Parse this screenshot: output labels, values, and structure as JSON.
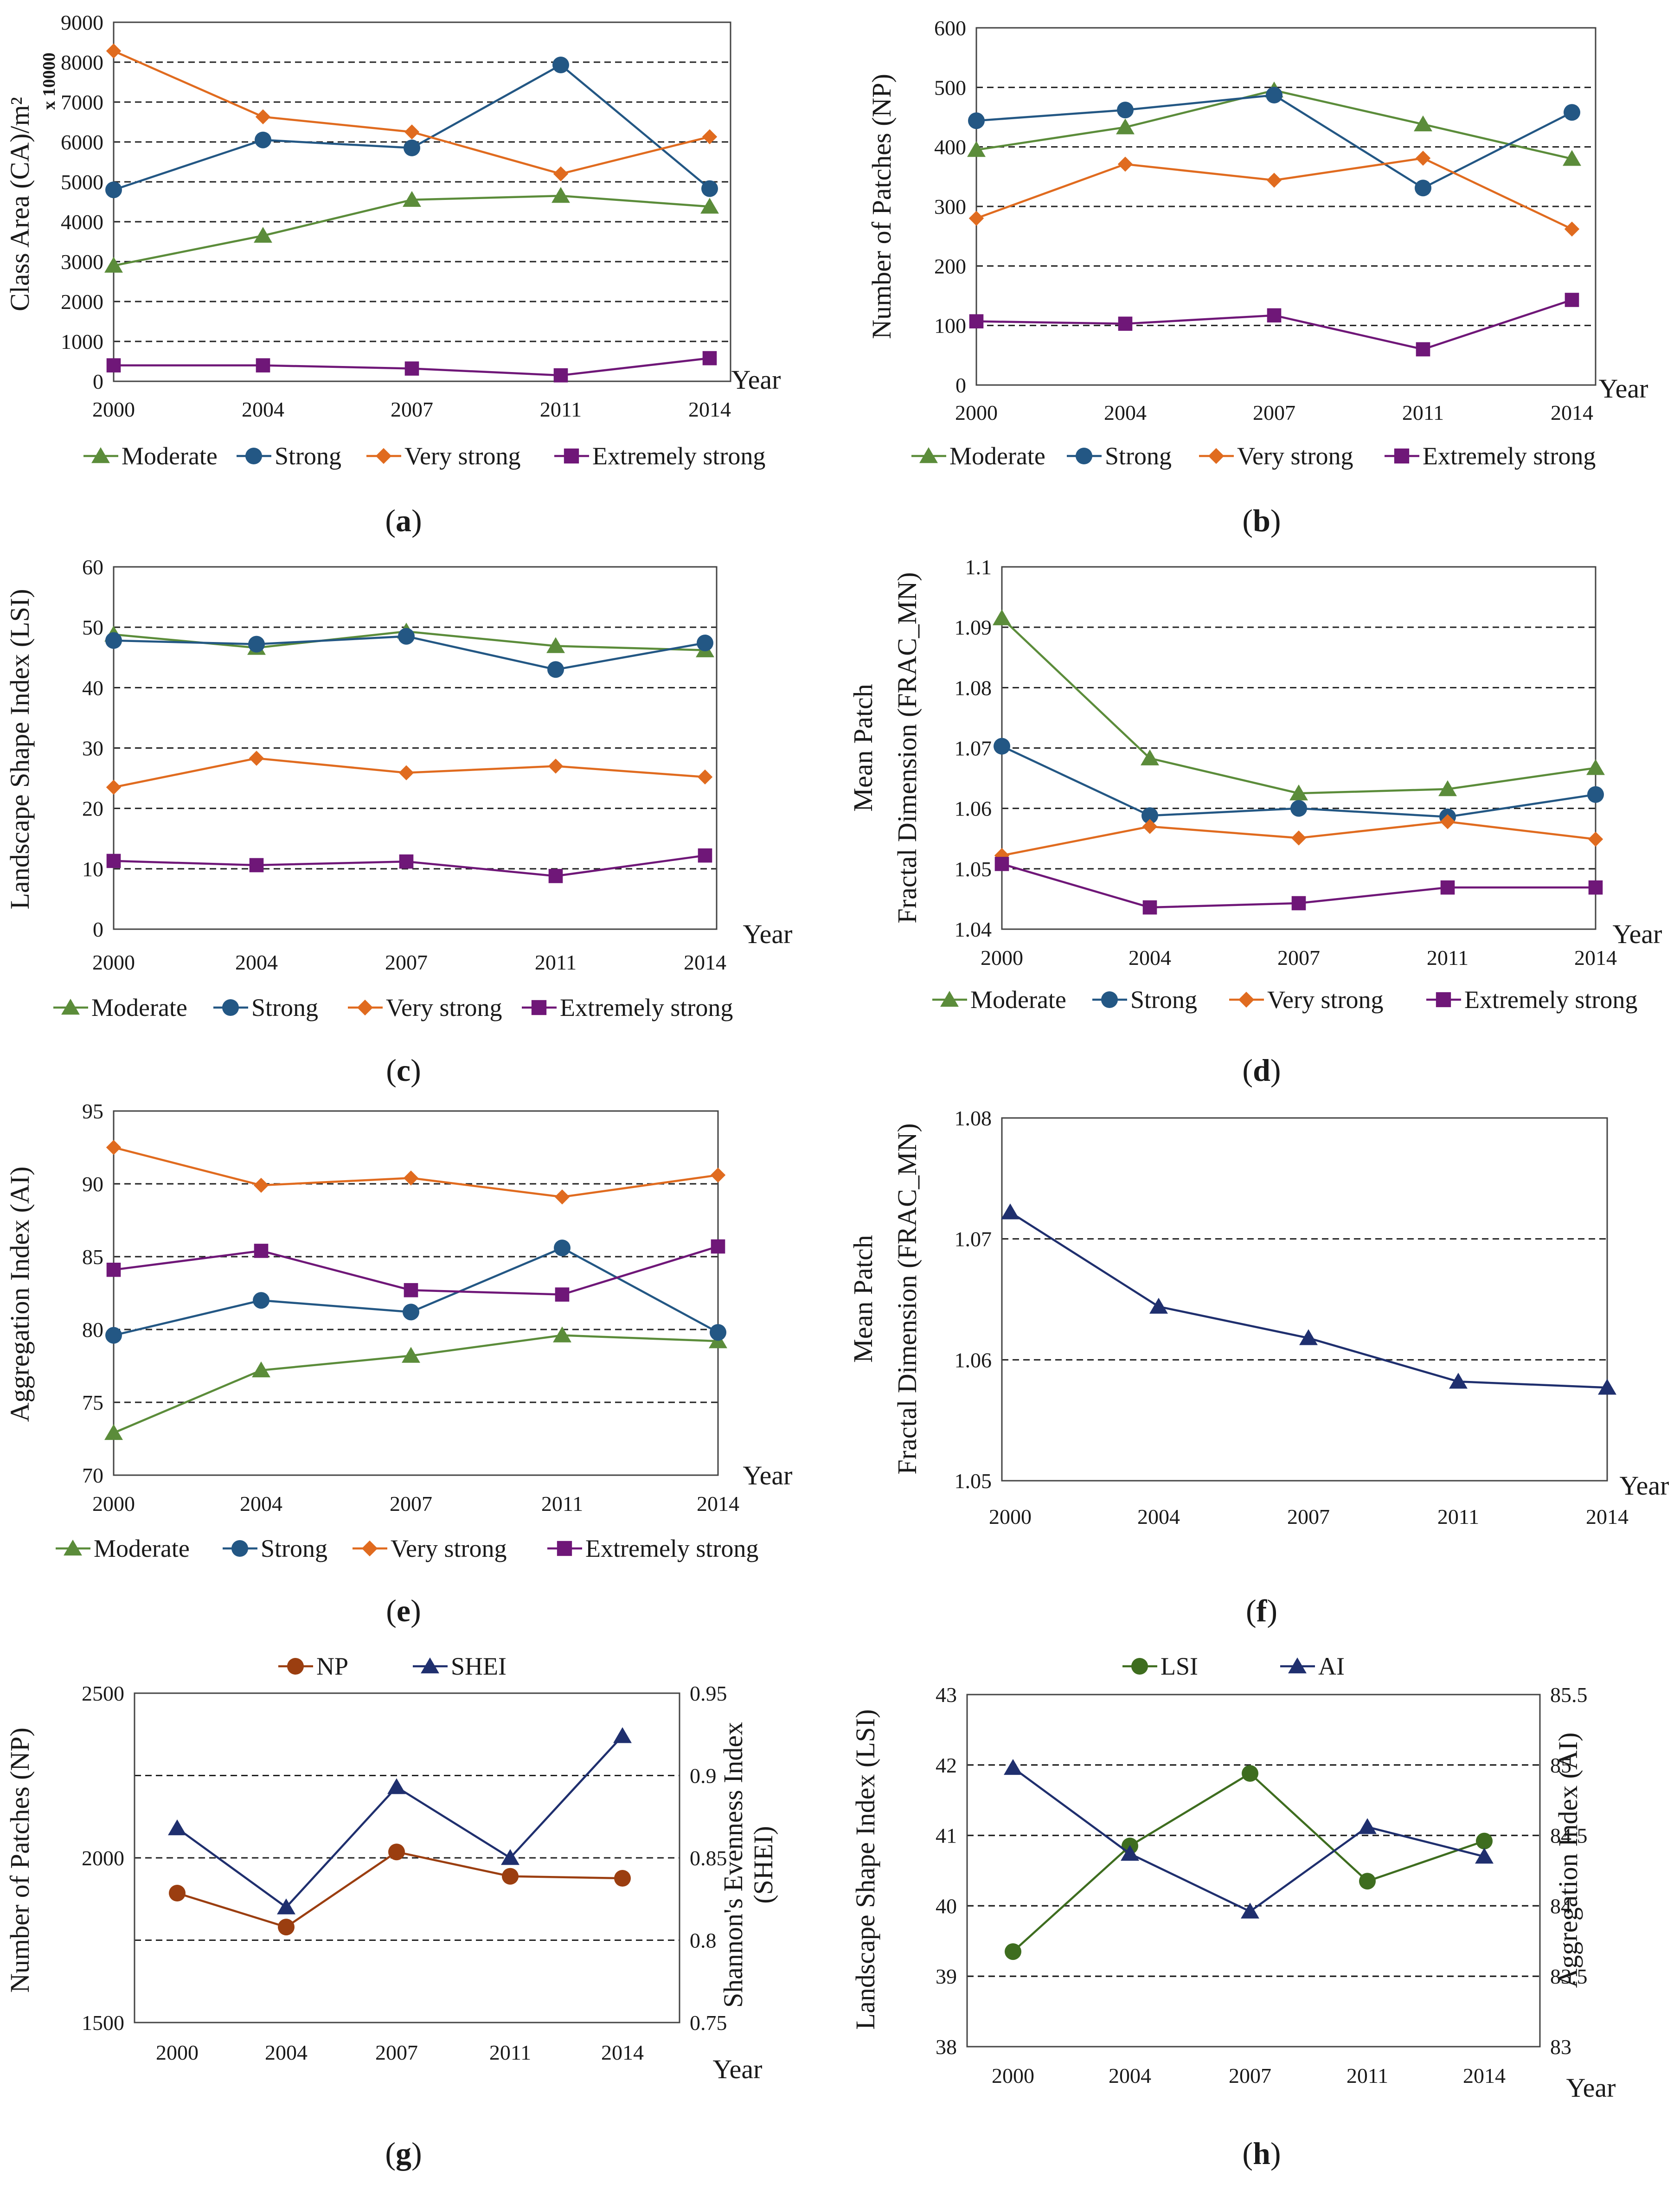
{
  "colors": {
    "moderate": "#5b8c3a",
    "strong": "#235784",
    "very_strong": "#e06b1f",
    "extremely_strong": "#6f1778",
    "np": "#9b3e10",
    "shei": "#1f2f6e",
    "lsi_h": "#3e6d1f",
    "ai_h": "#1f2f6e",
    "frac_f": "#1f2f6e"
  },
  "chart_data": [
    {
      "id": "a",
      "type": "line",
      "caption": "a",
      "title": "",
      "ylabel": "Class Area (CA)/m²",
      "multiplier": "x 10000",
      "xlabel": "Year",
      "categories": [
        "2000",
        "2004",
        "2007",
        "2011",
        "2014"
      ],
      "ylim": [
        0,
        9000
      ],
      "yticks": [
        "0",
        "1000",
        "2000",
        "3000",
        "4000",
        "5000",
        "6000",
        "7000",
        "8000",
        "9000"
      ],
      "grid": "dashed",
      "legend": "bottom",
      "series": [
        {
          "name": "Moderate",
          "marker": "triangle",
          "color_key": "moderate",
          "values": [
            2900,
            3650,
            4550,
            4650,
            4380
          ]
        },
        {
          "name": "Strong",
          "marker": "circle",
          "color_key": "strong",
          "values": [
            4800,
            6050,
            5850,
            7930,
            4830
          ]
        },
        {
          "name": "Very strong",
          "marker": "diamond",
          "color_key": "very_strong",
          "values": [
            8280,
            6630,
            6250,
            5200,
            6130
          ]
        },
        {
          "name": "Extremely strong",
          "marker": "square",
          "color_key": "extremely_strong",
          "values": [
            400,
            400,
            320,
            150,
            580
          ]
        }
      ]
    },
    {
      "id": "b",
      "type": "line",
      "caption": "b",
      "ylabel": "Number of Patches (NP)",
      "xlabel": "Year",
      "categories": [
        "2000",
        "2004",
        "2007",
        "2011",
        "2014"
      ],
      "ylim": [
        0,
        600
      ],
      "yticks": [
        "0",
        "100",
        "200",
        "300",
        "400",
        "500",
        "600"
      ],
      "grid": "dashed",
      "legend": "bottom",
      "series": [
        {
          "name": "Moderate",
          "marker": "triangle",
          "color_key": "moderate",
          "values": [
            395,
            433,
            495,
            438,
            380
          ]
        },
        {
          "name": "Strong",
          "marker": "circle",
          "color_key": "strong",
          "values": [
            444,
            462,
            487,
            331,
            458
          ]
        },
        {
          "name": "Very strong",
          "marker": "diamond",
          "color_key": "very_strong",
          "values": [
            280,
            371,
            344,
            381,
            262
          ]
        },
        {
          "name": "Extremely strong",
          "marker": "square",
          "color_key": "extremely_strong",
          "values": [
            107,
            103,
            117,
            60,
            143
          ]
        }
      ]
    },
    {
      "id": "c",
      "type": "line",
      "caption": "c",
      "ylabel": "Landscape Shape Index (LSI)",
      "xlabel": "Year",
      "categories": [
        "2000",
        "2004",
        "2007",
        "2011",
        "2014"
      ],
      "ylim": [
        0,
        60
      ],
      "yticks": [
        "0",
        "10",
        "20",
        "30",
        "40",
        "50",
        "60"
      ],
      "grid": "dashed",
      "legend": "bottom",
      "series": [
        {
          "name": "Moderate",
          "marker": "triangle",
          "color_key": "moderate",
          "values": [
            48.8,
            46.6,
            49.3,
            46.9,
            46.2
          ]
        },
        {
          "name": "Strong",
          "marker": "circle",
          "color_key": "strong",
          "values": [
            47.8,
            47.2,
            48.5,
            43.0,
            47.4
          ]
        },
        {
          "name": "Very strong",
          "marker": "diamond",
          "color_key": "very_strong",
          "values": [
            23.5,
            28.3,
            25.9,
            27.0,
            25.2
          ]
        },
        {
          "name": "Extremely strong",
          "marker": "square",
          "color_key": "extremely_strong",
          "values": [
            11.3,
            10.6,
            11.2,
            8.8,
            12.2
          ]
        }
      ]
    },
    {
      "id": "d",
      "type": "line",
      "caption": "d",
      "ylabel": "Mean Patch Fractal Dimension (FRAC_MN)",
      "xlabel": "Year",
      "categories": [
        "2000",
        "2004",
        "2007",
        "2011",
        "2014"
      ],
      "ylim": [
        1.04,
        1.1
      ],
      "yticks": [
        "1.04",
        "1.05",
        "1.06",
        "1.07",
        "1.08",
        "1.09",
        "1.1"
      ],
      "grid": "dashed",
      "legend": "bottom",
      "series": [
        {
          "name": "Moderate",
          "marker": "triangle",
          "color_key": "moderate",
          "values": [
            1.0915,
            1.0683,
            1.0625,
            1.0632,
            1.0667
          ]
        },
        {
          "name": "Strong",
          "marker": "circle",
          "color_key": "strong",
          "values": [
            1.0703,
            1.0588,
            1.06,
            1.0586,
            1.0623
          ]
        },
        {
          "name": "Very strong",
          "marker": "diamond",
          "color_key": "very_strong",
          "values": [
            1.0522,
            1.057,
            1.0551,
            1.0578,
            1.0549
          ]
        },
        {
          "name": "Extremely strong",
          "marker": "square",
          "color_key": "extremely_strong",
          "values": [
            1.0508,
            1.0436,
            1.0443,
            1.0469,
            1.0469
          ]
        }
      ]
    },
    {
      "id": "e",
      "type": "line",
      "caption": "e",
      "ylabel": "Aggregation Index (AI)",
      "xlabel": "Year",
      "categories": [
        "2000",
        "2004",
        "2007",
        "2011",
        "2014"
      ],
      "ylim": [
        70,
        95
      ],
      "yticks": [
        "70",
        "75",
        "80",
        "85",
        "90",
        "95"
      ],
      "grid": "dashed",
      "legend": "bottom",
      "series": [
        {
          "name": "Moderate",
          "marker": "triangle",
          "color_key": "moderate",
          "values": [
            72.9,
            77.2,
            78.2,
            79.6,
            79.2
          ]
        },
        {
          "name": "Strong",
          "marker": "circle",
          "color_key": "strong",
          "values": [
            79.6,
            82.0,
            81.2,
            85.6,
            79.8
          ]
        },
        {
          "name": "Very strong",
          "marker": "diamond",
          "color_key": "very_strong",
          "values": [
            92.5,
            89.9,
            90.4,
            89.1,
            90.6
          ]
        },
        {
          "name": "Extremely strong",
          "marker": "square",
          "color_key": "extremely_strong",
          "values": [
            84.1,
            85.4,
            82.7,
            82.4,
            85.7
          ]
        }
      ]
    },
    {
      "id": "f",
      "type": "line",
      "caption": "f",
      "ylabel": "Mean Patch Fractal Dimension (FRAC_MN)",
      "xlabel": "Year",
      "categories": [
        "2000",
        "2004",
        "2007",
        "2011",
        "2014"
      ],
      "ylim": [
        1.05,
        1.08
      ],
      "yticks": [
        "1.05",
        "1.06",
        "1.07",
        "1.08"
      ],
      "grid": "dashed",
      "legend": "none",
      "series": [
        {
          "name": "FRAC_MN",
          "marker": "triangle",
          "color_key": "frac_f",
          "values": [
            1.0722,
            1.0644,
            1.0618,
            1.0582,
            1.0577
          ]
        }
      ]
    },
    {
      "id": "g",
      "type": "line",
      "caption": "g",
      "ylabel": "Number of Patches (NP)",
      "y2label": "Shannon's Evenness Index (SHEI)",
      "xlabel": "Year",
      "categories": [
        "2000",
        "2004",
        "2007",
        "2011",
        "2014"
      ],
      "ylim": [
        1500,
        2500
      ],
      "yticks": [
        "1500",
        "2000",
        "2500"
      ],
      "y2lim": [
        0.75,
        0.95
      ],
      "y2ticks": [
        "0.75",
        "0.8",
        "0.85",
        "0.9",
        "0.95"
      ],
      "grid": "dashed",
      "legend": "top",
      "series": [
        {
          "name": "NP",
          "marker": "circle",
          "color_key": "np",
          "axis": "left",
          "values": [
            1893,
            1790,
            2018,
            1944,
            1938
          ]
        },
        {
          "name": "SHEI",
          "marker": "triangle",
          "color_key": "shei",
          "axis": "right",
          "values": [
            0.868,
            0.82,
            0.893,
            0.85,
            0.924
          ]
        }
      ]
    },
    {
      "id": "h",
      "type": "line",
      "caption": "h",
      "ylabel": "Landscape Shape Index (LSI)",
      "y2label": "Aggregation Index (AI)",
      "xlabel": "Year",
      "categories": [
        "2000",
        "2004",
        "2007",
        "2011",
        "2014"
      ],
      "ylim": [
        38,
        43
      ],
      "yticks": [
        "38",
        "39",
        "40",
        "41",
        "42",
        "43"
      ],
      "y2lim": [
        83,
        85.5
      ],
      "y2ticks": [
        "83",
        "83.5",
        "84",
        "84.5",
        "85",
        "85.5"
      ],
      "grid": "dashed",
      "legend": "top",
      "series": [
        {
          "name": "LSI",
          "marker": "circle",
          "color_key": "lsi_h",
          "axis": "left",
          "values": [
            39.35,
            40.85,
            41.88,
            40.35,
            40.92
          ]
        },
        {
          "name": "AI",
          "marker": "triangle",
          "color_key": "ai_h",
          "axis": "right",
          "values": [
            84.98,
            84.37,
            83.96,
            84.56,
            84.35
          ]
        }
      ]
    }
  ]
}
